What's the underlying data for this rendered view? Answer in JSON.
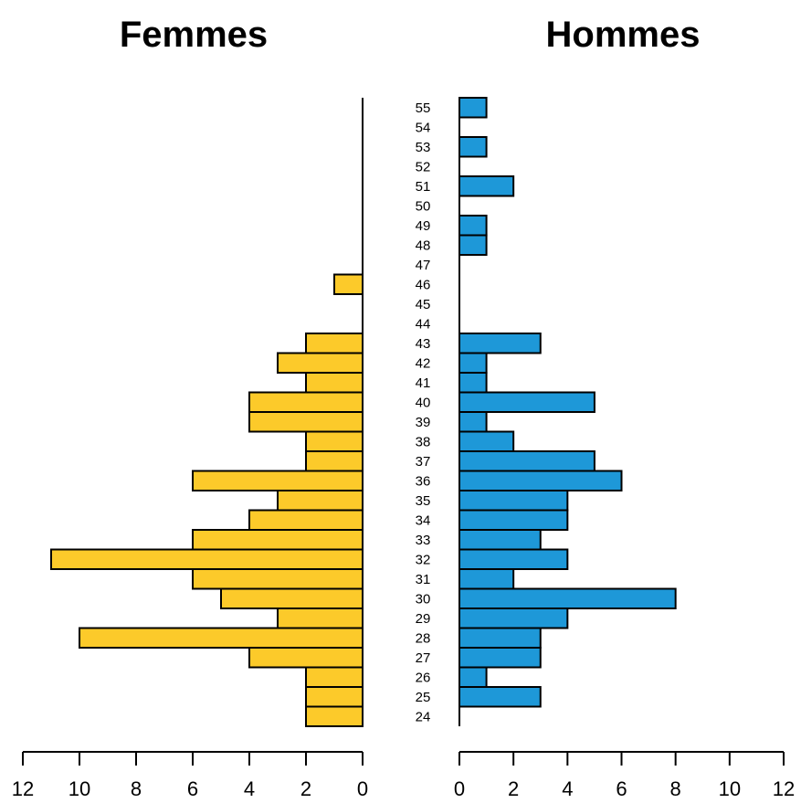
{
  "chart_data": {
    "type": "bar",
    "orientation": "horizontal",
    "layout": "population-pyramid",
    "categories": [
      "24",
      "25",
      "26",
      "27",
      "28",
      "29",
      "30",
      "31",
      "32",
      "33",
      "34",
      "35",
      "36",
      "37",
      "38",
      "39",
      "40",
      "41",
      "42",
      "43",
      "44",
      "45",
      "46",
      "47",
      "48",
      "49",
      "50",
      "51",
      "52",
      "53",
      "54",
      "55"
    ],
    "series": [
      {
        "title": "Femmes",
        "color": "#FCCA2A",
        "values": [
          2,
          2,
          2,
          4,
          10,
          3,
          5,
          6,
          11,
          6,
          4,
          3,
          6,
          2,
          2,
          4,
          4,
          2,
          3,
          2,
          0,
          0,
          1,
          0,
          0,
          0,
          0,
          0,
          0,
          0,
          0,
          0
        ]
      },
      {
        "title": "Hommes",
        "color": "#1E98D8",
        "values": [
          0,
          3,
          1,
          3,
          3,
          4,
          8,
          2,
          4,
          3,
          4,
          4,
          6,
          5,
          2,
          1,
          5,
          1,
          1,
          3,
          0,
          0,
          0,
          0,
          1,
          1,
          0,
          2,
          0,
          1,
          0,
          1
        ]
      }
    ],
    "xlim": [
      0,
      12
    ],
    "xticks": [
      0,
      2,
      4,
      6,
      8,
      10,
      12
    ],
    "xtick_labels": [
      "0",
      "2",
      "4",
      "6",
      "8",
      "10",
      "12"
    ]
  }
}
